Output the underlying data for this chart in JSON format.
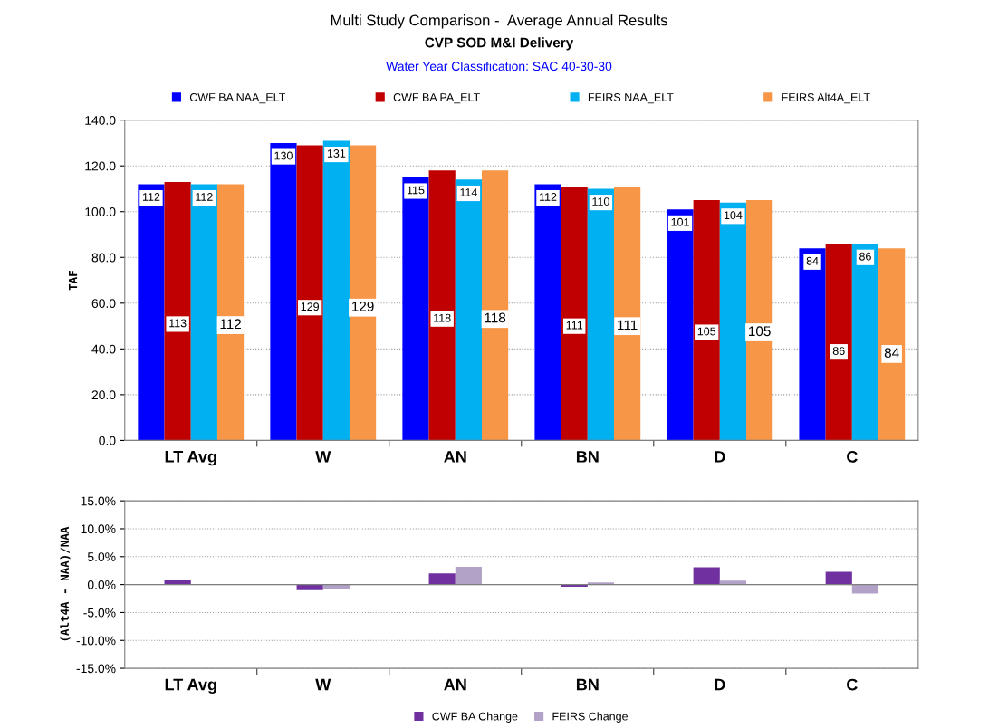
{
  "chart_data": [
    {
      "type": "bar",
      "title": "Multi Study Comparison -  Average Annual Results",
      "subtitle": "CVP SOD M&I Delivery",
      "annotations": [
        "Water Year Classification: SAC 40-30-30"
      ],
      "ylabel": "TAF",
      "categories": [
        "LT Avg",
        "W",
        "AN",
        "BN",
        "D",
        "C"
      ],
      "series": [
        {
          "name": "CWF BA NAA_ELT",
          "color": "#0000ff",
          "values": [
            112,
            130,
            115,
            112,
            101,
            84
          ]
        },
        {
          "name": "CWF BA PA_ELT",
          "color": "#c00000",
          "values": [
            113,
            129,
            118,
            111,
            105,
            86
          ]
        },
        {
          "name": "FEIRS NAA_ELT",
          "color": "#00b0f0",
          "values": [
            112,
            131,
            114,
            110,
            104,
            86
          ]
        },
        {
          "name": "FEIRS Alt4A_ELT",
          "color": "#f79646",
          "values": [
            112,
            129,
            118,
            111,
            105,
            84
          ]
        }
      ],
      "ylim": [
        0,
        140
      ],
      "yticks": [
        {
          "value": 0,
          "label": "0.0"
        },
        {
          "value": 20,
          "label": "20.0"
        },
        {
          "value": 40,
          "label": "40.0"
        },
        {
          "value": 60,
          "label": "60.0"
        },
        {
          "value": 80,
          "label": "80.0"
        },
        {
          "value": 100,
          "label": "100.0"
        },
        {
          "value": 120,
          "label": "120.0"
        },
        {
          "value": 140,
          "label": "140.0"
        }
      ],
      "grid": "y",
      "legend": "top",
      "data_labels": true
    },
    {
      "type": "bar",
      "ylabel": "(Alt4A - NAA)/NAA",
      "categories": [
        "LT Avg",
        "W",
        "AN",
        "BN",
        "D",
        "C"
      ],
      "series": [
        {
          "name": "CWF BA Change",
          "color": "#7030a0",
          "values": [
            0.8,
            -1.0,
            2.0,
            -0.4,
            3.1,
            2.3
          ]
        },
        {
          "name": "FEIRS Change",
          "color": "#b3a2c7",
          "values": [
            0.1,
            -0.8,
            3.2,
            0.4,
            0.7,
            -1.6
          ]
        }
      ],
      "ylim": [
        -15,
        15
      ],
      "yticks": [
        {
          "value": -15,
          "label": "-15.0%"
        },
        {
          "value": -10,
          "label": "-10.0%"
        },
        {
          "value": -5,
          "label": "-5.0%"
        },
        {
          "value": 0,
          "label": "0.0%"
        },
        {
          "value": 5,
          "label": "5.0%"
        },
        {
          "value": 10,
          "label": "10.0%"
        },
        {
          "value": 15,
          "label": "15.0%"
        }
      ],
      "ref_lines": [
        {
          "axis": "y",
          "value": 0,
          "color": "#808080"
        }
      ],
      "grid": "y",
      "legend": "bottom"
    }
  ]
}
